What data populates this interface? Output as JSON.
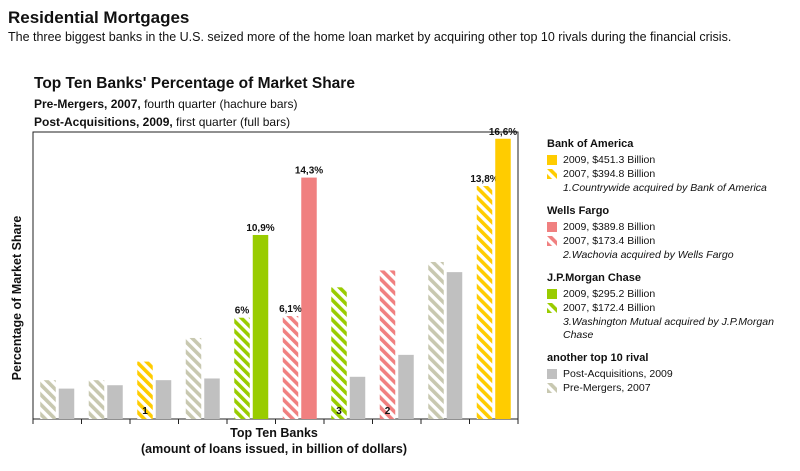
{
  "header": {
    "title": "Residential Mortgages",
    "subtitle": "The three biggest banks in the  U.S. seized more of the home loan market by acquiring other top 10 rivals during the financial crisis."
  },
  "chart_data": {
    "type": "bar",
    "title": "Top Ten Banks' Percentage of Market Share",
    "subtitle_lines": [
      {
        "bold": "Pre-Mergers, 2007,",
        "rest": " fourth quarter (hachure bars)"
      },
      {
        "bold": "Post-Acquisitions, 2009,",
        "rest": " first quarter (full bars)"
      }
    ],
    "xlabel": "Top Ten Banks",
    "xlabel_sub": "(amount of loans issued, in billion of dollars)",
    "ylabel": "Percentage of Market Share",
    "ylim": [
      0,
      17
    ],
    "grid": false,
    "legend_position": "right",
    "groups": [
      {
        "bars": [
          {
            "kind": "pre",
            "color": "#c8c8b0",
            "value": 2.3
          },
          {
            "kind": "post",
            "color": "#c0c0c0",
            "value": 1.8
          }
        ]
      },
      {
        "bars": [
          {
            "kind": "pre",
            "color": "#c8c8b0",
            "value": 2.3
          },
          {
            "kind": "post",
            "color": "#c0c0c0",
            "value": 2.0
          }
        ]
      },
      {
        "bars": [
          {
            "kind": "pre",
            "color": "#ffcc00",
            "value": 3.4,
            "marker": "1"
          },
          {
            "kind": "post",
            "color": "#c0c0c0",
            "value": 2.3
          }
        ]
      },
      {
        "bars": [
          {
            "kind": "pre",
            "color": "#c8c8b0",
            "value": 4.8
          },
          {
            "kind": "post",
            "color": "#c0c0c0",
            "value": 2.4
          }
        ]
      },
      {
        "bars": [
          {
            "kind": "pre",
            "color": "#99cc00",
            "value": 6.0,
            "label": "6%"
          },
          {
            "kind": "post",
            "color": "#99cc00",
            "value": 10.9,
            "label": "10,9%"
          }
        ]
      },
      {
        "bars": [
          {
            "kind": "pre",
            "color": "#f08080",
            "value": 6.1,
            "label": "6,1%"
          },
          {
            "kind": "post",
            "color": "#f08080",
            "value": 14.3,
            "label": "14,3%"
          }
        ]
      },
      {
        "bars": [
          {
            "kind": "pre",
            "color": "#99cc00",
            "value": 7.8,
            "marker": "3"
          },
          {
            "kind": "post",
            "color": "#c0c0c0",
            "value": 2.5
          }
        ]
      },
      {
        "bars": [
          {
            "kind": "pre",
            "color": "#f08080",
            "value": 8.8,
            "marker": "2"
          },
          {
            "kind": "post",
            "color": "#c0c0c0",
            "value": 3.8
          }
        ]
      },
      {
        "bars": [
          {
            "kind": "pre",
            "color": "#c8c8b0",
            "value": 9.3
          },
          {
            "kind": "post",
            "color": "#c0c0c0",
            "value": 8.7
          }
        ]
      },
      {
        "bars": [
          {
            "kind": "pre",
            "color": "#ffcc00",
            "value": 13.8,
            "label": "13,8%"
          },
          {
            "kind": "post",
            "color": "#ffcc00",
            "value": 16.6,
            "label": "16,6%"
          }
        ]
      }
    ],
    "legend": [
      {
        "heading": "Bank of America",
        "items": [
          {
            "kind": "post",
            "color": "#ffcc00",
            "text": "2009, $451.3 Billion"
          },
          {
            "kind": "pre",
            "color": "#ffcc00",
            "text": "2007, $394.8 Billion"
          }
        ],
        "note": "1.Countrywide acquired by Bank of America"
      },
      {
        "heading": "Wells Fargo",
        "items": [
          {
            "kind": "post",
            "color": "#f08080",
            "text": "2009, $389.8 Billion"
          },
          {
            "kind": "pre",
            "color": "#f08080",
            "text": "2007, $173.4 Billion"
          }
        ],
        "note": "2.Wachovia acquired by Wells Fargo"
      },
      {
        "heading": "J.P.Morgan Chase",
        "items": [
          {
            "kind": "post",
            "color": "#99cc00",
            "text": "2009, $295.2 Billion"
          },
          {
            "kind": "pre",
            "color": "#99cc00",
            "text": "2007, $172.4 Billion"
          }
        ],
        "note": "3.Washington Mutual acquired by J.P.Morgan Chase"
      },
      {
        "heading": "another top 10 rival",
        "items": [
          {
            "kind": "post",
            "color": "#c0c0c0",
            "text": "Post-Acquisitions, 2009"
          },
          {
            "kind": "pre",
            "color": "#c8c8b0",
            "text": "Pre-Mergers, 2007"
          }
        ],
        "note": ""
      }
    ]
  }
}
